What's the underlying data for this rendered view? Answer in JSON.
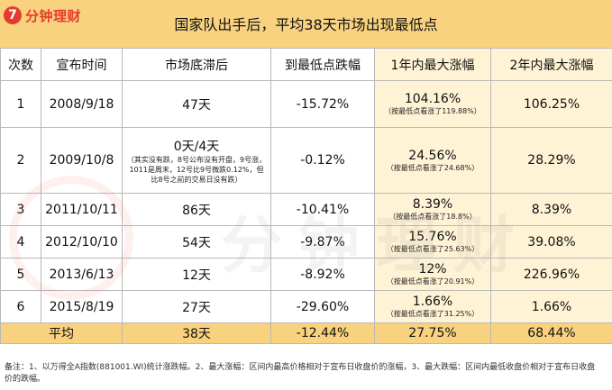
{
  "logo": {
    "mark": "7",
    "text": "分钟理财"
  },
  "title": "国家队出手后，平均38天市场出现最低点",
  "headers": [
    "次数",
    "宣布时间",
    "市场底滞后",
    "到最低点跌幅",
    "1年内最大涨幅",
    "2年内最大涨幅"
  ],
  "rows": [
    {
      "n": "1",
      "date": "2008/9/18",
      "lag": "47天",
      "lag_note": "",
      "drop": "-15.72%",
      "y1": "104.16%",
      "y1_note": "（按最低点看涨了119.88%）",
      "y2": "106.25%"
    },
    {
      "n": "2",
      "date": "2009/10/8",
      "lag": "0天/4天",
      "lag_note": "（其实没有跌，8号公布没有开盘，9号涨，1011是周末，12号比9号微跌0.12%，但比8号之前的交易日没有跌）",
      "drop": "-0.12%",
      "y1": "24.56%",
      "y1_note": "（按最低点看涨了24.68%）",
      "y2": "28.29%"
    },
    {
      "n": "3",
      "date": "2011/10/11",
      "lag": "86天",
      "lag_note": "",
      "drop": "-10.41%",
      "y1": "8.39%",
      "y1_note": "（按最低点看涨了18.8%）",
      "y2": "8.39%"
    },
    {
      "n": "4",
      "date": "2012/10/10",
      "lag": "54天",
      "lag_note": "",
      "drop": "-9.87%",
      "y1": "15.76%",
      "y1_note": "（按最低点看涨了25.63%）",
      "y2": "39.08%"
    },
    {
      "n": "5",
      "date": "2013/6/13",
      "lag": "12天",
      "lag_note": "",
      "drop": "-8.92%",
      "y1": "12%",
      "y1_note": "（按最低点看涨了20.91%）",
      "y2": "226.96%"
    },
    {
      "n": "6",
      "date": "2015/8/19",
      "lag": "27天",
      "lag_note": "",
      "drop": "-29.60%",
      "y1": "1.66%",
      "y1_note": "（按最低点看涨了31.25%）",
      "y2": "1.66%"
    }
  ],
  "avg": {
    "label": "平均",
    "lag": "38天",
    "drop": "-12.44%",
    "y1": "27.75%",
    "y2": "68.44%"
  },
  "footer": "备注：1、以万得全A指数(881001.WI)统计涨跌幅。2、最大涨幅：区间内最高价格相对于宣布日收盘价的涨幅，3、最大跌幅：区间内最低收盘价相对于宣布日收盘价的跌幅。",
  "watermark": "分钟理财",
  "colors": {
    "header_bg": "#f8d27e",
    "highlight_bg": "#fef3d5",
    "logo_red": "#e53b2d"
  }
}
